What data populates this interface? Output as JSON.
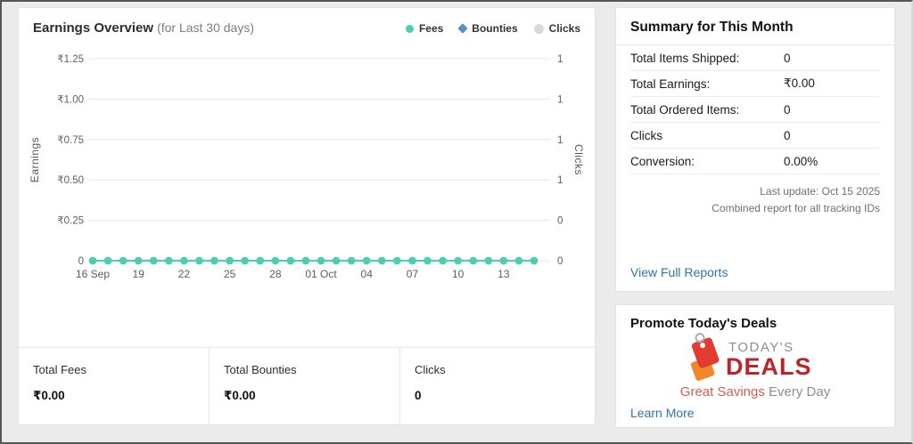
{
  "page": {
    "background": "#ebebeb"
  },
  "earnings_card": {
    "title": "Earnings Overview",
    "subtitle": "(for Last 30 days)",
    "legend": [
      {
        "label": "Fees",
        "color": "#4ecdb2",
        "shape": "circle"
      },
      {
        "label": "Bounties",
        "color": "#5b8fc9",
        "shape": "diamond"
      },
      {
        "label": "Clicks",
        "color": "#d9d9d9",
        "shape": "circle"
      }
    ],
    "stats": [
      {
        "label": "Total Fees",
        "value": "₹0.00"
      },
      {
        "label": "Total Bounties",
        "value": "₹0.00"
      },
      {
        "label": "Clicks",
        "value": "0"
      }
    ]
  },
  "chart_data": {
    "type": "line",
    "title": "Earnings Overview (for Last 30 days)",
    "num_points": 30,
    "x_tick_labels": [
      "16 Sep",
      "19",
      "22",
      "25",
      "28",
      "01 Oct",
      "04",
      "07",
      "10",
      "13"
    ],
    "x_tick_indices": [
      0,
      3,
      6,
      9,
      12,
      15,
      18,
      21,
      24,
      27
    ],
    "left_axis": {
      "label": "Earnings",
      "tick_labels": [
        "₹1.25",
        "₹1.00",
        "₹0.75",
        "₹0.50",
        "₹0.25",
        "0"
      ],
      "range": [
        0,
        1.25
      ]
    },
    "right_axis": {
      "label": "Clicks",
      "tick_labels": [
        "1",
        "1",
        "1",
        "1",
        "0",
        "0"
      ]
    },
    "grid": true,
    "legend_position": "top-right",
    "series": [
      {
        "name": "Fees",
        "color": "#4ecdb2",
        "values": [
          0,
          0,
          0,
          0,
          0,
          0,
          0,
          0,
          0,
          0,
          0,
          0,
          0,
          0,
          0,
          0,
          0,
          0,
          0,
          0,
          0,
          0,
          0,
          0,
          0,
          0,
          0,
          0,
          0,
          0
        ]
      },
      {
        "name": "Bounties",
        "color": "#5b8fc9",
        "values": [
          0,
          0,
          0,
          0,
          0,
          0,
          0,
          0,
          0,
          0,
          0,
          0,
          0,
          0,
          0,
          0,
          0,
          0,
          0,
          0,
          0,
          0,
          0,
          0,
          0,
          0,
          0,
          0,
          0,
          0
        ]
      },
      {
        "name": "Clicks",
        "color": "#d9d9d9",
        "values": [
          0,
          0,
          0,
          0,
          0,
          0,
          0,
          0,
          0,
          0,
          0,
          0,
          0,
          0,
          0,
          0,
          0,
          0,
          0,
          0,
          0,
          0,
          0,
          0,
          0,
          0,
          0,
          0,
          0,
          0
        ]
      }
    ]
  },
  "summary_card": {
    "title": "Summary for This Month",
    "rows": [
      {
        "label": "Total Items Shipped:",
        "value": "0"
      },
      {
        "label": "Total Earnings:",
        "value": "₹0.00"
      },
      {
        "label": "Total Ordered Items:",
        "value": "0"
      },
      {
        "label": "Clicks",
        "value": "0"
      },
      {
        "label": "Conversion:",
        "value": "0.00%"
      }
    ],
    "last_update": "Last update: Oct 15 2025",
    "report_note": "Combined report for all tracking IDs",
    "link": "View Full Reports"
  },
  "deals_card": {
    "title": "Promote Today's Deals",
    "logo_line1": "TODAY'S",
    "logo_line2": "DEALS",
    "logo_colors": {
      "tag_red": "#e23c30",
      "tag_orange": "#f0882a",
      "deals_red": "#b9252b",
      "todays_gray": "#8f8f8f"
    },
    "tagline_highlight": "Great Savings",
    "tagline_rest": " Every Day",
    "link": "Learn More"
  }
}
